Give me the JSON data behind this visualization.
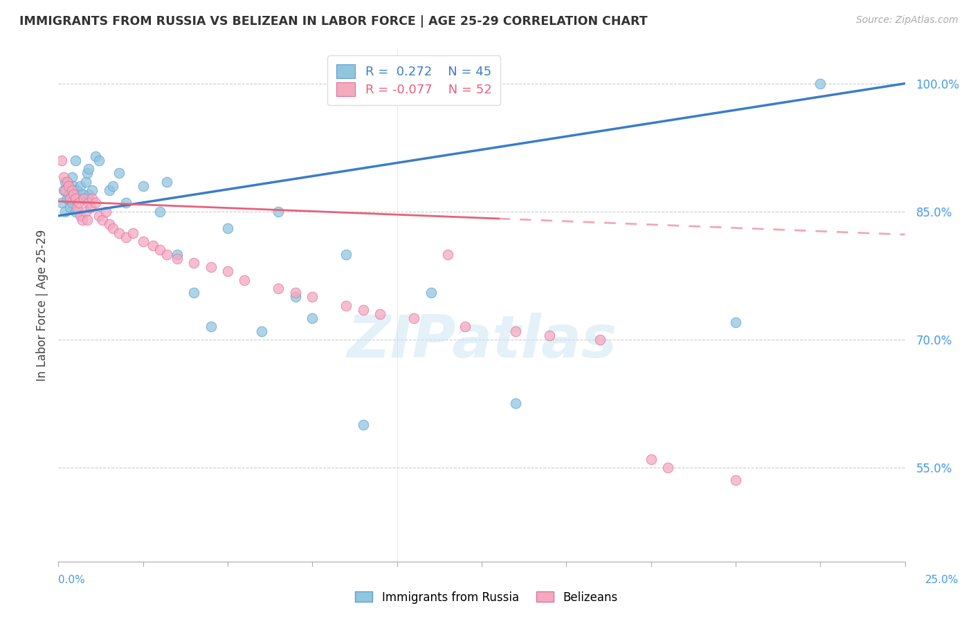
{
  "title": "IMMIGRANTS FROM RUSSIA VS BELIZEAN IN LABOR FORCE | AGE 25-29 CORRELATION CHART",
  "source": "Source: ZipAtlas.com",
  "ylabel": "In Labor Force | Age 25-29",
  "y_ticks": [
    55.0,
    70.0,
    85.0,
    100.0
  ],
  "xmin": 0.0,
  "xmax": 25.0,
  "ymin": 44.0,
  "ymax": 104.0,
  "blue_scatter_color": "#92c5de",
  "pink_scatter_color": "#f4a9be",
  "blue_line_color": "#3a7dc9",
  "pink_line_color": "#e8607a",
  "blue_edge_color": "#5a9ed4",
  "pink_edge_color": "#e070a0",
  "blue_trend_x0": 0.0,
  "blue_trend_y0": 84.5,
  "blue_trend_x1": 25.0,
  "blue_trend_y1": 100.0,
  "pink_trend_x0": 0.0,
  "pink_trend_y0": 86.2,
  "pink_trend_x1": 25.0,
  "pink_trend_y1": 82.3,
  "pink_solid_end": 13.0,
  "russia_x": [
    0.1,
    0.15,
    0.2,
    0.2,
    0.25,
    0.3,
    0.35,
    0.4,
    0.4,
    0.45,
    0.5,
    0.5,
    0.55,
    0.6,
    0.65,
    0.7,
    0.75,
    0.8,
    0.85,
    0.9,
    0.9,
    1.0,
    1.1,
    1.2,
    1.5,
    1.6,
    1.8,
    2.0,
    2.5,
    3.0,
    3.2,
    3.5,
    4.0,
    4.5,
    5.0,
    6.0,
    6.5,
    7.0,
    7.5,
    8.5,
    9.0,
    11.0,
    13.5,
    20.0,
    22.5
  ],
  "russia_y": [
    86.0,
    87.5,
    88.5,
    85.0,
    86.5,
    87.0,
    85.5,
    86.0,
    89.0,
    88.0,
    91.0,
    85.0,
    87.5,
    86.5,
    88.0,
    87.0,
    86.5,
    88.5,
    89.5,
    90.0,
    87.0,
    87.5,
    91.5,
    91.0,
    87.5,
    88.0,
    89.5,
    86.0,
    88.0,
    85.0,
    88.5,
    80.0,
    75.5,
    71.5,
    83.0,
    71.0,
    85.0,
    75.0,
    72.5,
    80.0,
    60.0,
    75.5,
    62.5,
    72.0,
    100.0
  ],
  "belizean_x": [
    0.1,
    0.15,
    0.2,
    0.25,
    0.3,
    0.35,
    0.4,
    0.45,
    0.5,
    0.55,
    0.6,
    0.65,
    0.7,
    0.75,
    0.8,
    0.85,
    0.9,
    0.95,
    1.0,
    1.1,
    1.2,
    1.3,
    1.4,
    1.5,
    1.6,
    1.8,
    2.0,
    2.2,
    2.5,
    2.8,
    3.0,
    3.2,
    3.5,
    4.0,
    4.5,
    5.0,
    5.5,
    6.5,
    7.0,
    7.5,
    8.5,
    9.0,
    9.5,
    10.5,
    11.5,
    12.0,
    13.5,
    14.5,
    16.0,
    17.5,
    18.0,
    20.0
  ],
  "belizean_y": [
    91.0,
    89.0,
    87.5,
    88.5,
    88.0,
    86.5,
    87.5,
    87.0,
    86.5,
    85.5,
    86.0,
    84.5,
    84.0,
    86.5,
    85.0,
    84.0,
    86.0,
    85.5,
    86.5,
    86.0,
    84.5,
    84.0,
    85.0,
    83.5,
    83.0,
    82.5,
    82.0,
    82.5,
    81.5,
    81.0,
    80.5,
    80.0,
    79.5,
    79.0,
    78.5,
    78.0,
    77.0,
    76.0,
    75.5,
    75.0,
    74.0,
    73.5,
    73.0,
    72.5,
    80.0,
    71.5,
    71.0,
    70.5,
    70.0,
    56.0,
    55.0,
    53.5
  ]
}
